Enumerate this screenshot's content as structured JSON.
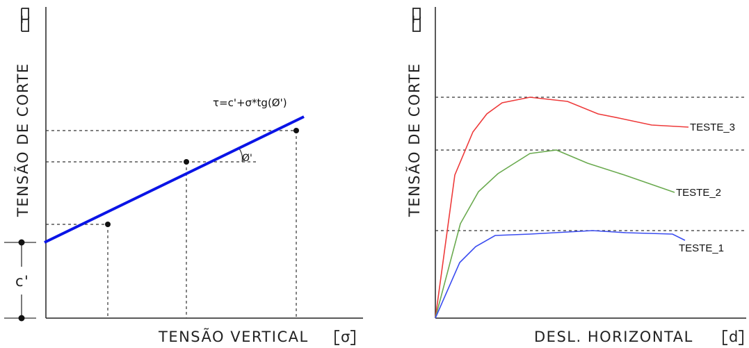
{
  "left_diagram": {
    "y_axis_label": "TENSÃO  DE  CORTE",
    "y_axis_symbol": "τ",
    "x_axis_label": "TENSÃO  VERTICAL",
    "x_axis_symbol": "σ",
    "formula": "τ=c'+σ*tg(Ø')",
    "angle_label": "Ø'",
    "cohesion_label": "c'",
    "line_color": "#0a14e6"
  },
  "right_diagram": {
    "y_axis_label": "TENSÃO  DE  CORTE",
    "y_axis_symbol": "τ",
    "x_axis_label": "DESL.  HORIZONTAL",
    "x_axis_symbol": "d",
    "series": [
      {
        "name": "TESTE_3",
        "color": "#ee3a3a"
      },
      {
        "name": "TESTE_2",
        "color": "#6aaa4f"
      },
      {
        "name": "TESTE_1",
        "color": "#3a4cf0"
      }
    ]
  }
}
